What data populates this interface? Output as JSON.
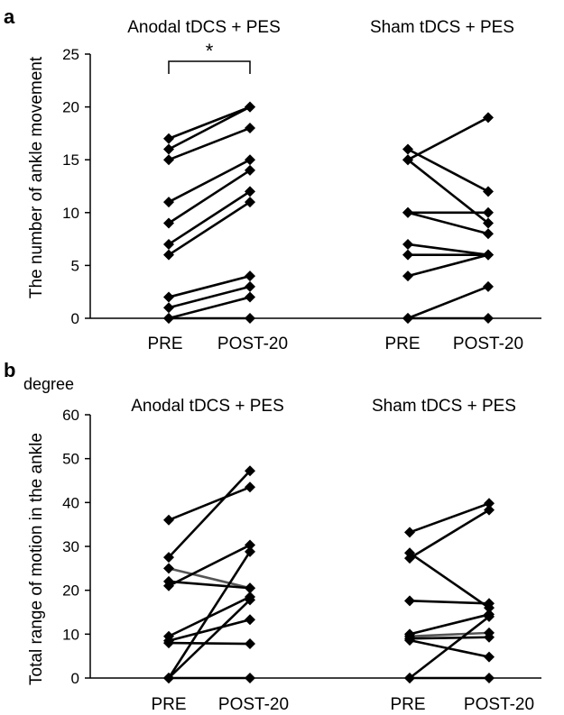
{
  "chart_data": [
    {
      "type": "line",
      "panel_label": "a",
      "title": "",
      "ylabel": "The number of ankle movement",
      "unit_label": "",
      "ylim": [
        0,
        25
      ],
      "yticks": [
        0,
        5,
        10,
        15,
        20,
        25
      ],
      "groups": [
        {
          "title": "Anodal tDCS + PES",
          "categories": [
            "PRE",
            "POST-20"
          ],
          "significance": "*",
          "subjects": [
            {
              "values": [
                17,
                20
              ]
            },
            {
              "values": [
                16,
                20
              ]
            },
            {
              "values": [
                15,
                18
              ]
            },
            {
              "values": [
                11,
                15
              ]
            },
            {
              "values": [
                9,
                14
              ]
            },
            {
              "values": [
                7,
                12
              ]
            },
            {
              "values": [
                6,
                11
              ]
            },
            {
              "values": [
                2,
                4
              ]
            },
            {
              "values": [
                1,
                3
              ]
            },
            {
              "values": [
                0,
                2
              ]
            },
            {
              "values": [
                0,
                0
              ]
            }
          ]
        },
        {
          "title": "Sham tDCS + PES",
          "categories": [
            "PRE",
            "POST-20"
          ],
          "significance": "",
          "subjects": [
            {
              "values": [
                16,
                12
              ]
            },
            {
              "values": [
                15,
                19
              ]
            },
            {
              "values": [
                15,
                9
              ]
            },
            {
              "values": [
                10,
                10
              ]
            },
            {
              "values": [
                10,
                8
              ]
            },
            {
              "values": [
                7,
                6
              ]
            },
            {
              "values": [
                6,
                6
              ]
            },
            {
              "values": [
                4,
                6
              ]
            },
            {
              "values": [
                0,
                3
              ]
            },
            {
              "values": [
                0,
                0
              ]
            }
          ]
        }
      ]
    },
    {
      "type": "line",
      "panel_label": "b",
      "title": "",
      "ylabel": "Total range of motion in the ankle",
      "unit_label": "degree",
      "ylim": [
        0,
        60
      ],
      "yticks": [
        0,
        10,
        20,
        30,
        40,
        50,
        60
      ],
      "groups": [
        {
          "title": "Anodal tDCS + PES",
          "categories": [
            "PRE",
            "POST-20"
          ],
          "significance": "",
          "subjects": [
            {
              "values": [
                36,
                43.5
              ]
            },
            {
              "values": [
                27.5,
                47.2
              ]
            },
            {
              "values": [
                25,
                20.5
              ],
              "color": "#555555"
            },
            {
              "values": [
                22,
                20.5
              ]
            },
            {
              "values": [
                21,
                30.3
              ]
            },
            {
              "values": [
                9.5,
                18.5
              ]
            },
            {
              "values": [
                8.5,
                13.3
              ]
            },
            {
              "values": [
                8,
                7.8
              ]
            },
            {
              "values": [
                0,
                28.8
              ]
            },
            {
              "values": [
                0,
                17.8
              ]
            },
            {
              "values": [
                0,
                0
              ]
            }
          ]
        },
        {
          "title": "Sham tDCS + PES",
          "categories": [
            "PRE",
            "POST-20"
          ],
          "significance": "",
          "subjects": [
            {
              "values": [
                33.2,
                39.8
              ]
            },
            {
              "values": [
                28.5,
                16
              ]
            },
            {
              "values": [
                27.3,
                38.3
              ]
            },
            {
              "values": [
                17.6,
                17
              ]
            },
            {
              "values": [
                10,
                14.5
              ]
            },
            {
              "values": [
                9.5,
                10.3
              ],
              "color": "#555555"
            },
            {
              "values": [
                9,
                9.3
              ]
            },
            {
              "values": [
                8.6,
                4.8
              ]
            },
            {
              "values": [
                0,
                14
              ]
            },
            {
              "values": [
                0,
                0
              ]
            }
          ]
        }
      ]
    }
  ]
}
